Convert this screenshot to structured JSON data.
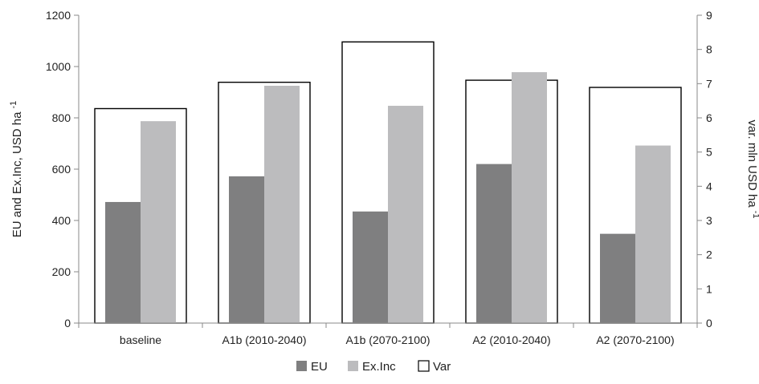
{
  "chart_data": {
    "type": "bar",
    "categories": [
      "baseline",
      "A1b (2010-2040)",
      "A1b (2070-2100)",
      "A2 (2010-2040)",
      "A2 (2070-2100)"
    ],
    "series": [
      {
        "name": "EU",
        "axis": "left",
        "values": [
          472,
          572,
          435,
          620,
          348
        ],
        "color": "#7f7f80"
      },
      {
        "name": "Ex.Inc",
        "axis": "left",
        "values": [
          787,
          925,
          847,
          978,
          692
        ],
        "color": "#bcbcbe"
      },
      {
        "name": "Var",
        "axis": "right",
        "values": [
          6.27,
          7.04,
          8.22,
          7.1,
          6.89
        ],
        "color": "#ffffff",
        "stroke": "#000000"
      }
    ],
    "ylabel": "EU and Ex.Inc, USD ha",
    "ylabel_sup": "-1",
    "ylim": [
      0,
      1200
    ],
    "yticks": [
      0,
      200,
      400,
      600,
      800,
      1000,
      1200
    ],
    "y2label": "var. mln USD ha",
    "y2label_sup": "-1",
    "y2lim": [
      0,
      9
    ],
    "y2ticks": [
      0,
      1,
      2,
      3,
      4,
      5,
      6,
      7,
      8,
      9
    ],
    "legend_position": "bottom",
    "grid": false
  }
}
